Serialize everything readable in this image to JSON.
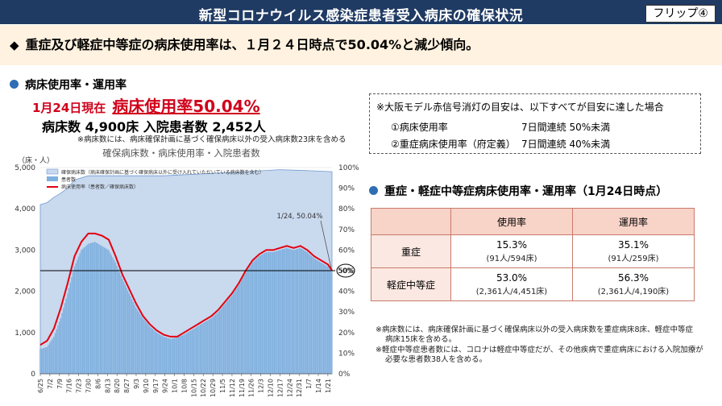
{
  "header": {
    "title": "新型コロナウイルス感染症患者受入病床の確保状況",
    "flip": "フリップ④"
  },
  "summary": "重症及び軽症中等症の病床使用率は、１月２４日時点で50.04%と減少傾向。",
  "left": {
    "section_title": "病床使用率・運用率",
    "date_label": "1月24日現在",
    "rate_label": "病床使用率50.04%",
    "beds": "病床数 4,900床  入院患者数  2,452人",
    "note": "※病床数には、病床確保計画に基づく確保病床以外の受入病床数23床を含める"
  },
  "info_box": {
    "line1": "※大阪モデル赤信号消灯の目安は、以下すべてが目安に達した場合",
    "rows": [
      {
        "label": "①病床使用率",
        "value": "7日間連続 50%未満"
      },
      {
        "label": "②重症病床使用率（府定義）",
        "value": "7日間連続 40%未満"
      }
    ]
  },
  "table_section": {
    "title": "重症・軽症中等症病床使用率・運用率（1月24日時点）",
    "headers": [
      "使用率",
      "運用率"
    ],
    "rows": [
      {
        "label": "重症",
        "usage": "15.3%",
        "usage_detail": "(91人/594床)",
        "op": "35.1%",
        "op_detail": "(91人/259床)"
      },
      {
        "label": "軽症中等症",
        "usage": "53.0%",
        "usage_detail": "(2,361人/4,451床)",
        "op": "56.3%",
        "op_detail": "(2,361人/4,190床)"
      }
    ]
  },
  "footnotes": [
    "※病床数には、病床確保計画に基づく確保病床以外の受入病床数を重症病床8床、軽症中等症",
    "病床15床を含める。",
    "※軽症中等症患者数には、コロナは軽症中等症だが、その他疾病で重症病床における入院加療が",
    "必要な患者数38人を含める。"
  ],
  "chart_data": {
    "type": "area",
    "title": "確保病床数・病床使用率・入院患者数",
    "y_left_unit": "（床・人）",
    "y_left_range": [
      0,
      5000
    ],
    "y_left_ticks": [
      "0",
      "1,000",
      "2,000",
      "3,000",
      "4,000",
      "5,000"
    ],
    "y_right_range": [
      0,
      100
    ],
    "y_right_ticks": [
      "0%",
      "10%",
      "20%",
      "30%",
      "40%",
      "50%",
      "60%",
      "70%",
      "80%",
      "90%",
      "100%"
    ],
    "x_ticks": [
      "6/25",
      "7/2",
      "7/9",
      "7/16",
      "7/23",
      "7/30",
      "8/6",
      "8/13",
      "8/20",
      "8/27",
      "9/3",
      "9/10",
      "9/17",
      "9/24",
      "10/1",
      "10/8",
      "10/15",
      "10/22",
      "10/29",
      "11/5",
      "11/12",
      "11/19",
      "11/26",
      "12/3",
      "12/10",
      "12/17",
      "12/24",
      "12/31",
      "1/7",
      "1/14",
      "1/21"
    ],
    "legend": [
      "確保病床数（病床確保計画に基づく確保病床以外に受け入れていただいている病床数を含む）",
      "患者数",
      "病床使用率（患者数／確保病床数）"
    ],
    "reference_line_pct": 50,
    "reference_label": "50%",
    "annotation": "1/24, 50.04%",
    "series": [
      {
        "name": "確保病床数",
        "x": [
          0,
          5,
          10,
          15,
          20,
          25,
          35,
          60,
          90,
          120,
          150,
          175,
          200,
          213
        ],
        "values": [
          4100,
          4150,
          4280,
          4380,
          4500,
          4700,
          4800,
          4800,
          4800,
          4850,
          4900,
          4950,
          4920,
          4900
        ]
      },
      {
        "name": "患者数",
        "x": [
          0,
          5,
          10,
          15,
          20,
          25,
          30,
          35,
          40,
          45,
          50,
          55,
          60,
          65,
          70,
          75,
          80,
          85,
          90,
          95,
          100,
          105,
          110,
          115,
          120,
          125,
          130,
          135,
          140,
          145,
          150,
          155,
          160,
          165,
          170,
          175,
          180,
          185,
          190,
          195,
          200,
          205,
          210,
          213
        ],
        "values": [
          600,
          650,
          900,
          1350,
          1950,
          2600,
          3000,
          3150,
          3200,
          3100,
          3000,
          2700,
          2300,
          1950,
          1600,
          1350,
          1150,
          1000,
          900,
          850,
          880,
          950,
          1050,
          1150,
          1250,
          1350,
          1500,
          1700,
          1900,
          2150,
          2450,
          2700,
          2850,
          2950,
          2950,
          3000,
          3050,
          3000,
          3050,
          2950,
          2800,
          2700,
          2600,
          2452
        ]
      },
      {
        "name": "病床使用率",
        "unit": "%",
        "x": [
          0,
          5,
          10,
          15,
          20,
          25,
          30,
          35,
          40,
          45,
          50,
          55,
          60,
          65,
          70,
          75,
          80,
          85,
          90,
          95,
          100,
          105,
          110,
          115,
          120,
          125,
          130,
          135,
          140,
          145,
          150,
          155,
          160,
          165,
          170,
          175,
          180,
          185,
          190,
          195,
          200,
          205,
          210,
          213
        ],
        "values": [
          14,
          16,
          22,
          32,
          44,
          57,
          64,
          68,
          68,
          67,
          65,
          57,
          48,
          41,
          34,
          28,
          24,
          21,
          19,
          18,
          18,
          20,
          22,
          24,
          26,
          28,
          31,
          35,
          39,
          44,
          50,
          55,
          58,
          60,
          60,
          61,
          62,
          61,
          62,
          60,
          57,
          55,
          53,
          50.04
        ]
      }
    ]
  }
}
